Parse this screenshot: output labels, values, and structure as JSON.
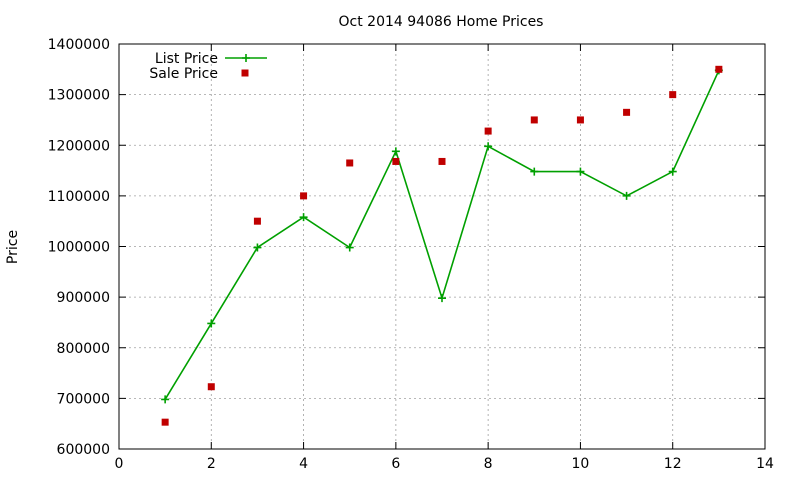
{
  "chart_data": {
    "type": "line",
    "title": "Oct 2014 94086 Home Prices",
    "xlabel": "",
    "ylabel": "Price",
    "xlim": [
      0,
      14
    ],
    "ylim": [
      600000,
      1400000
    ],
    "grid": true,
    "legend_position": "top-left",
    "x_ticks": [
      "0",
      "2",
      "4",
      "6",
      "8",
      "10",
      "12",
      "14"
    ],
    "y_ticks": [
      "600000",
      "700000",
      "800000",
      "900000",
      "1000000",
      "1100000",
      "1200000",
      "1300000",
      "1400000"
    ],
    "series": [
      {
        "name": "List Price",
        "kind": "line-with-plus-markers",
        "color": "#00a000",
        "x": [
          1,
          2,
          3,
          4,
          5,
          6,
          7,
          8,
          9,
          10,
          11,
          12,
          13
        ],
        "values": [
          698000,
          848000,
          998000,
          1058000,
          998000,
          1188000,
          898000,
          1198000,
          1148000,
          1148000,
          1100000,
          1148000,
          1348000
        ]
      },
      {
        "name": "Sale Price",
        "kind": "square-points",
        "color": "#c00000",
        "x": [
          1,
          2,
          3,
          4,
          5,
          6,
          7,
          8,
          9,
          10,
          11,
          12,
          13
        ],
        "values": [
          653000,
          723000,
          1050000,
          1100000,
          1165000,
          1168000,
          1168000,
          1228000,
          1250000,
          1250000,
          1265000,
          1300000,
          1350000
        ]
      }
    ]
  }
}
